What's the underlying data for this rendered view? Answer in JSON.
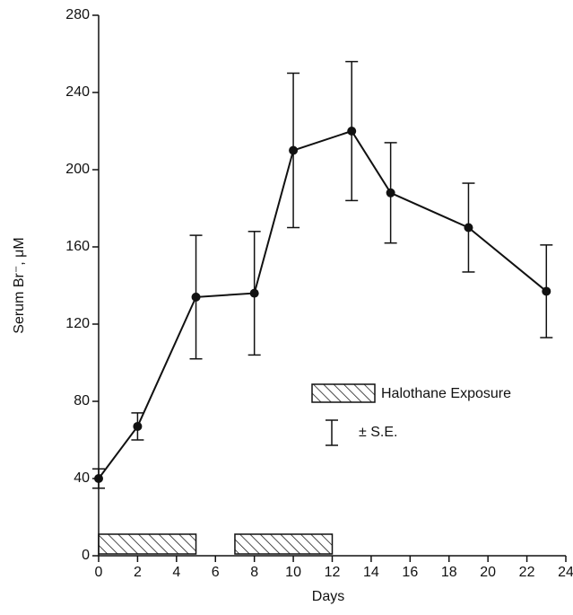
{
  "chart_data": {
    "type": "line",
    "x_label": "Days",
    "y_label": "Serum Br⁻, μM",
    "x": [
      0,
      2,
      5,
      8,
      10,
      13,
      15,
      19,
      23
    ],
    "series": [
      {
        "name": "Serum Br⁻",
        "color": "#111111",
        "values": [
          40,
          67,
          134,
          136,
          210,
          220,
          188,
          170,
          137
        ],
        "errors": [
          5,
          7,
          32,
          32,
          40,
          36,
          26,
          23,
          24
        ]
      }
    ],
    "exposures": [
      {
        "start": 0,
        "end": 5
      },
      {
        "start": 7,
        "end": 12
      }
    ],
    "legend": {
      "exposure": "Halothane Exposure",
      "error": "± S.E."
    },
    "xlim": [
      0,
      24
    ],
    "xticks": [
      0,
      2,
      4,
      6,
      8,
      10,
      12,
      14,
      16,
      18,
      20,
      22,
      24
    ],
    "ylim": [
      0,
      280
    ],
    "yticks": [
      0,
      40,
      80,
      120,
      160,
      200,
      240,
      280
    ]
  }
}
